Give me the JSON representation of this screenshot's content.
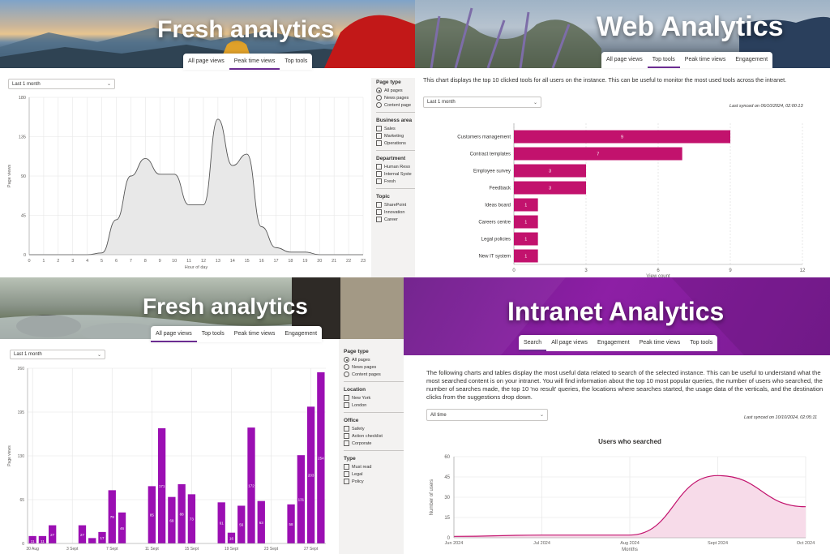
{
  "panels": {
    "p1": {
      "title": "Fresh analytics",
      "tabs": [
        "All page views",
        "Peak time views",
        "Top tools"
      ],
      "active_tab": 1,
      "dropdown": "Last 1 month",
      "filters": {
        "page_type": {
          "label": "Page type",
          "options": [
            "All pages",
            "News pages",
            "Content page"
          ],
          "selected": 0
        },
        "business_area": {
          "label": "Business area",
          "options": [
            "Sales",
            "Marketing",
            "Operations"
          ]
        },
        "department": {
          "label": "Department",
          "options": [
            "Human Reso",
            "Internal Syste",
            "Fresh"
          ]
        },
        "topic": {
          "label": "Topic",
          "options": [
            "SharePoint",
            "Innovation",
            "Career"
          ]
        }
      },
      "chart_data": {
        "type": "area",
        "x": [
          0,
          1,
          2,
          3,
          4,
          5,
          6,
          7,
          8,
          9,
          10,
          11,
          12,
          13,
          14,
          15,
          16,
          17,
          18,
          19,
          20,
          21,
          22,
          23
        ],
        "values": [
          0,
          0,
          0,
          0,
          0,
          2,
          40,
          90,
          110,
          92,
          92,
          57,
          57,
          155,
          102,
          115,
          32,
          8,
          3,
          3,
          0,
          0,
          0,
          0
        ],
        "xlabel": "Hour of day",
        "ylabel": "Page views",
        "ylim": [
          0,
          180
        ],
        "yticks": [
          0,
          45,
          90,
          135,
          180
        ],
        "grid": true,
        "fill": "#e8e8e8",
        "stroke": "#555555"
      }
    },
    "p2": {
      "title": "Web Analytics",
      "tabs": [
        "All page views",
        "Top tools",
        "Peak time views",
        "Engagement"
      ],
      "active_tab": 1,
      "description": "This chart displays the top 10 clicked tools for all users on the instance. This can be useful to monitor the most used tools across the intranet.",
      "dropdown": "Last 1 month",
      "synced": "Last synced on 06/10/2024, 02:00:13",
      "chart_data": {
        "type": "bar",
        "orientation": "horizontal",
        "categories": [
          "Customers management",
          "Contract templates",
          "Employee survey",
          "Feedback",
          "Ideas board",
          "Careers centre",
          "Legal policies",
          "New IT system"
        ],
        "values": [
          9,
          7,
          3,
          3,
          1,
          1,
          1,
          1
        ],
        "xlabel": "View count",
        "xlim": [
          0,
          12
        ],
        "xticks": [
          0,
          3,
          6,
          9,
          12
        ],
        "color": "#c2126d",
        "grid": true
      }
    },
    "p3": {
      "title": "Fresh analytics",
      "tabs": [
        "All page views",
        "Top tools",
        "Peak time views",
        "Engagement"
      ],
      "active_tab": 0,
      "dropdown": "Last 1 month",
      "filters": {
        "page_type": {
          "label": "Page type",
          "options": [
            "All pages",
            "News pages",
            "Content pages"
          ],
          "selected": 0
        },
        "location": {
          "label": "Location",
          "options": [
            "New York",
            "London"
          ]
        },
        "office": {
          "label": "Office",
          "options": [
            "Safety",
            "Action checklist",
            "Corporate"
          ]
        },
        "type": {
          "label": "Type",
          "options": [
            "Must read",
            "Legal",
            "Policy"
          ]
        }
      },
      "chart_data": {
        "type": "bar",
        "values": [
          11,
          11,
          27,
          0,
          0,
          27,
          8,
          17,
          79,
          46,
          0,
          0,
          85,
          171,
          69,
          88,
          73,
          0,
          0,
          61,
          16,
          56,
          172,
          63,
          0,
          0,
          58,
          131,
          203,
          254
        ],
        "data_labels": [
          "11",
          "11",
          "27",
          "",
          "",
          "27",
          "",
          "17",
          "79",
          "46",
          "",
          "",
          "85",
          "171",
          "69",
          "88",
          "73",
          "",
          "",
          "61",
          "16",
          "56",
          "172",
          "63",
          "",
          "",
          "58",
          "131",
          "203",
          "254"
        ],
        "ylabel": "Page views",
        "ylim": [
          0,
          260
        ],
        "yticks": [
          0,
          65,
          130,
          195,
          260
        ],
        "tick_labels": [
          "30 Aug",
          "3 Sept",
          "7 Sept",
          "11 Sept",
          "15 Sept",
          "19 Sept",
          "23 Sept",
          "27 Sept"
        ],
        "color": "#9b0fb3",
        "grid": true
      }
    },
    "p4": {
      "title": "Intranet Analytics",
      "tabs": [
        "Search",
        "All page views",
        "Engagement",
        "Peak time views",
        "Top tools"
      ],
      "active_tab": 0,
      "description": "The following charts and tables display the most useful data related to search of the selected instance. This can be useful to understand what the most searched content is on your intranet. You will find information about the top 10 most popular queries, the number of users who searched, the number of searches made, the top 10 'no result' queries, the locations where searches started, the usage data of the verticals, and the destination clicks from the suggestions drop down.",
      "dropdown": "All time",
      "synced": "Last synced on 10/10/2024, 02:05:11",
      "chart_data": {
        "type": "area",
        "title": "Users who searched",
        "x": [
          "Jun 2024",
          "Jul 2024",
          "Aug 2024",
          "Sept 2024",
          "Oct 2024"
        ],
        "values": [
          1,
          2,
          2,
          46,
          23
        ],
        "xlabel": "Months",
        "ylabel": "Number of users",
        "ylim": [
          0,
          60
        ],
        "yticks": [
          0,
          15,
          30,
          45,
          60
        ],
        "color": "#c2126d",
        "fill": "#f7dbe9"
      }
    }
  }
}
